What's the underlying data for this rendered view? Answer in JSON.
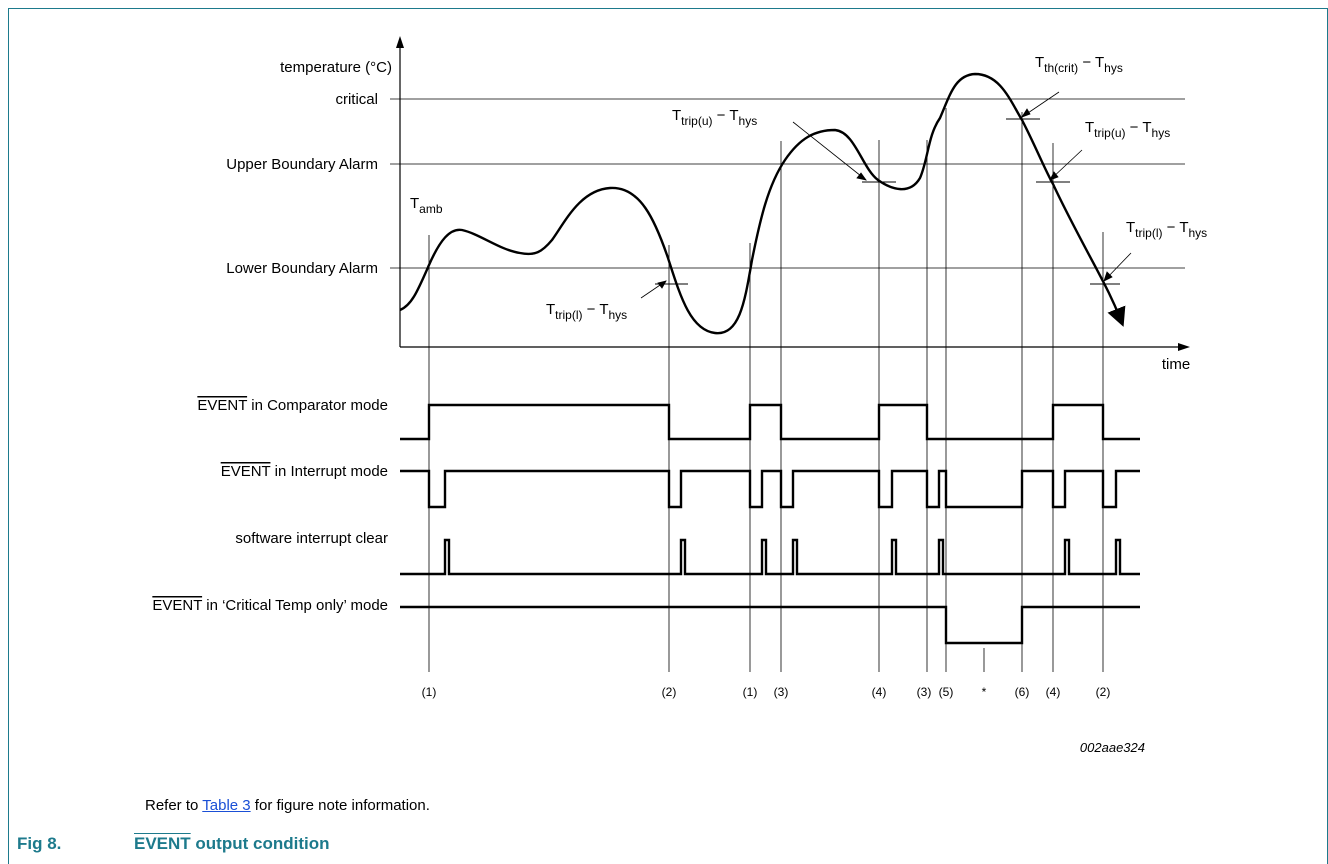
{
  "diagram": {
    "y_axis_label": "temperature (°C)",
    "x_axis_label": "time",
    "levels": {
      "critical": "critical",
      "upper": "Upper Boundary Alarm",
      "lower": "Lower Boundary Alarm"
    },
    "curve_labels": {
      "tamb": {
        "main": "T",
        "sub": "amb"
      },
      "trip_l_left": {
        "main": "T",
        "sub": "trip(l)",
        "rest": " − T",
        "sub2": "hys"
      },
      "trip_u_mid": {
        "main": "T",
        "sub": "trip(u)",
        "rest": " − T",
        "sub2": "hys"
      },
      "th_crit": {
        "main": "T",
        "sub": "th(crit)",
        "rest": " − T",
        "sub2": "hys"
      },
      "trip_u_right": {
        "main": "T",
        "sub": "trip(u)",
        "rest": " − T",
        "sub2": "hys"
      },
      "trip_l_right": {
        "main": "T",
        "sub": "trip(l)",
        "rest": " − T",
        "sub2": "hys"
      }
    },
    "signals": {
      "comparator": {
        "bar": "EVENT",
        "rest": " in Comparator mode"
      },
      "interrupt": {
        "bar": "EVENT",
        "rest": " in Interrupt mode"
      },
      "software_clear": {
        "text": "software interrupt clear"
      },
      "critical_only": {
        "bar": "EVENT",
        "rest": " in ‘Critical Temp only’ mode"
      }
    },
    "notes": [
      "(1)",
      "(2)",
      "(1)",
      "(3)",
      "(4)",
      "(3)",
      "(5)",
      "*",
      "(6)",
      "(4)",
      "(2)"
    ],
    "figure_id": "002aae324"
  },
  "caption": {
    "prefix": "Refer to ",
    "link": "Table 3",
    "suffix": " for figure note information."
  },
  "figure_title": {
    "number": "Fig 8.",
    "bar": "EVENT",
    "rest": " output condition"
  },
  "colors": {
    "accent": "#1d7a8c",
    "link": "#1a4fd6"
  }
}
